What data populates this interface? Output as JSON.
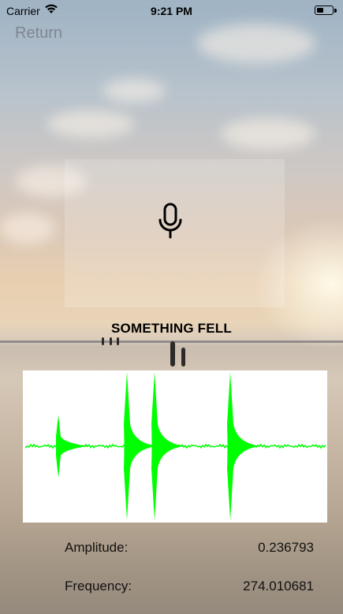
{
  "status_bar": {
    "carrier": "Carrier",
    "time": "9:21 PM",
    "battery_level": 0.45
  },
  "nav": {
    "return_label": "Return"
  },
  "mic": {
    "icon": "microphone-icon"
  },
  "message": "SOMETHING FELL",
  "waveform": {
    "color": "#00ff00",
    "background": "#ffffff"
  },
  "readouts": {
    "amplitude_label": "Amplitude:",
    "amplitude_value": "0.236793",
    "frequency_label": "Frequency:",
    "frequency_value": "274.010681"
  }
}
